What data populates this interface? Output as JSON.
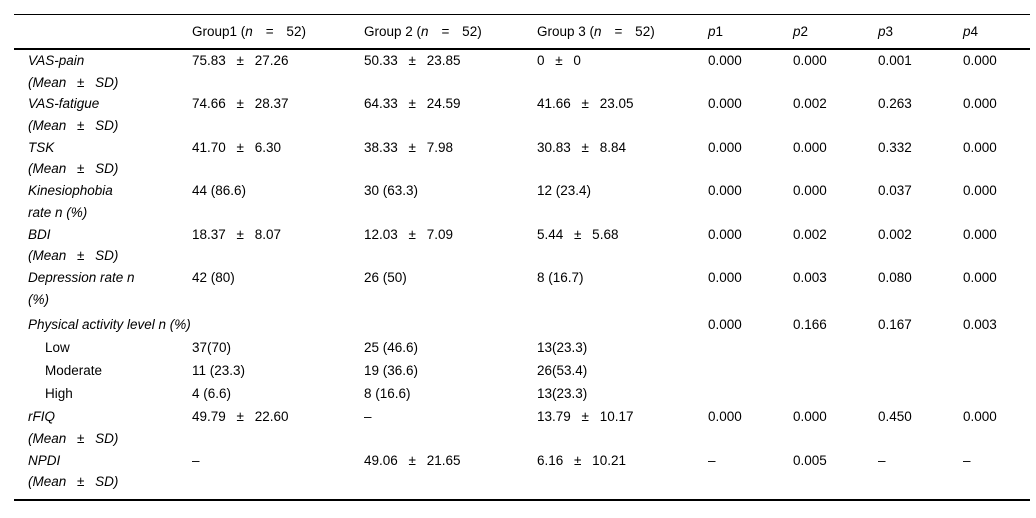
{
  "table": {
    "header": {
      "groups": [
        {
          "pre": "Group1 (",
          "var": "n",
          "post": "= 52)"
        },
        {
          "pre": "Group 2 (",
          "var": "n",
          "post": "= 52)"
        },
        {
          "pre": "Group 3 (",
          "var": "n",
          "post": "= 52)"
        }
      ],
      "pcols": [
        {
          "var": "p",
          "num": "1"
        },
        {
          "var": "p",
          "num": "2"
        },
        {
          "var": "p",
          "num": "3"
        },
        {
          "var": "p",
          "num": "4"
        }
      ]
    },
    "rows": [
      {
        "label": "VAS-pain",
        "sublabel": "(Mean ± SD)",
        "g1": "75.83 ± 27.26",
        "g2": "50.33 ± 23.85",
        "g3": "0 ± 0",
        "p1": "0.000",
        "p2": "0.000",
        "p3": "0.001",
        "p4": "0.000"
      },
      {
        "label": "VAS-fatigue",
        "sublabel": "(Mean ± SD)",
        "g1": "74.66 ± 28.37",
        "g2": "64.33 ± 24.59",
        "g3": "41.66 ± 23.05",
        "p1": "0.000",
        "p2": "0.002",
        "p3": "0.263",
        "p4": "0.000"
      },
      {
        "label": "TSK",
        "sublabel": "(Mean ± SD)",
        "g1": "41.70 ± 6.30",
        "g2": "38.33 ± 7.98",
        "g3": "30.83 ± 8.84",
        "p1": "0.000",
        "p2": "0.000",
        "p3": "0.332",
        "p4": "0.000"
      },
      {
        "label": "Kinesiophobia",
        "sublabel": "rate n (%)",
        "g1": "44 (86.6)",
        "g2": "30 (63.3)",
        "g3": "12 (23.4)",
        "p1": "0.000",
        "p2": "0.000",
        "p3": "0.037",
        "p4": "0.000"
      },
      {
        "label": "BDI",
        "sublabel": "(Mean ± SD)",
        "g1": "18.37 ± 8.07",
        "g2": "12.03 ± 7.09",
        "g3": "5.44 ± 5.68",
        "p1": "0.000",
        "p2": "0.002",
        "p3": "0.002",
        "p4": "0.000"
      },
      {
        "label": "Depression rate n",
        "sublabel": "(%)",
        "g1": "42 (80)",
        "g2": "26 (50)",
        "g3": "8 (16.7)",
        "p1": "0.000",
        "p2": "0.003",
        "p3": "0.080",
        "p4": "0.000"
      },
      {
        "label": "Physical activity level n (%)",
        "p1": "0.000",
        "p2": "0.166",
        "p3": "0.167",
        "p4": "0.003"
      },
      {
        "label": "Low",
        "g1": "37(70)",
        "g2": "25 (46.6)",
        "g3": "13(23.3)"
      },
      {
        "label": "Moderate",
        "g1": "11 (23.3)",
        "g2": "19 (36.6)",
        "g3": "26(53.4)"
      },
      {
        "label": "High",
        "g1": "4 (6.6)",
        "g2": "8 (16.6)",
        "g3": "13(23.3)"
      },
      {
        "label": "rFIQ",
        "sublabel": "(Mean ± SD)",
        "g1": "49.79 ± 22.60",
        "g2": "–",
        "g3": "13.79 ± 10.17",
        "p1": "0.000",
        "p2": "0.000",
        "p3": "0.450",
        "p4": "0.000"
      },
      {
        "label": "NPDI",
        "sublabel": "(Mean ± SD)",
        "g1": "–",
        "g2": "49.06 ± 21.65",
        "g3": "6.16 ± 10.21",
        "p1": "–",
        "p2": "0.005",
        "p3": "–",
        "p4": "–"
      }
    ]
  }
}
